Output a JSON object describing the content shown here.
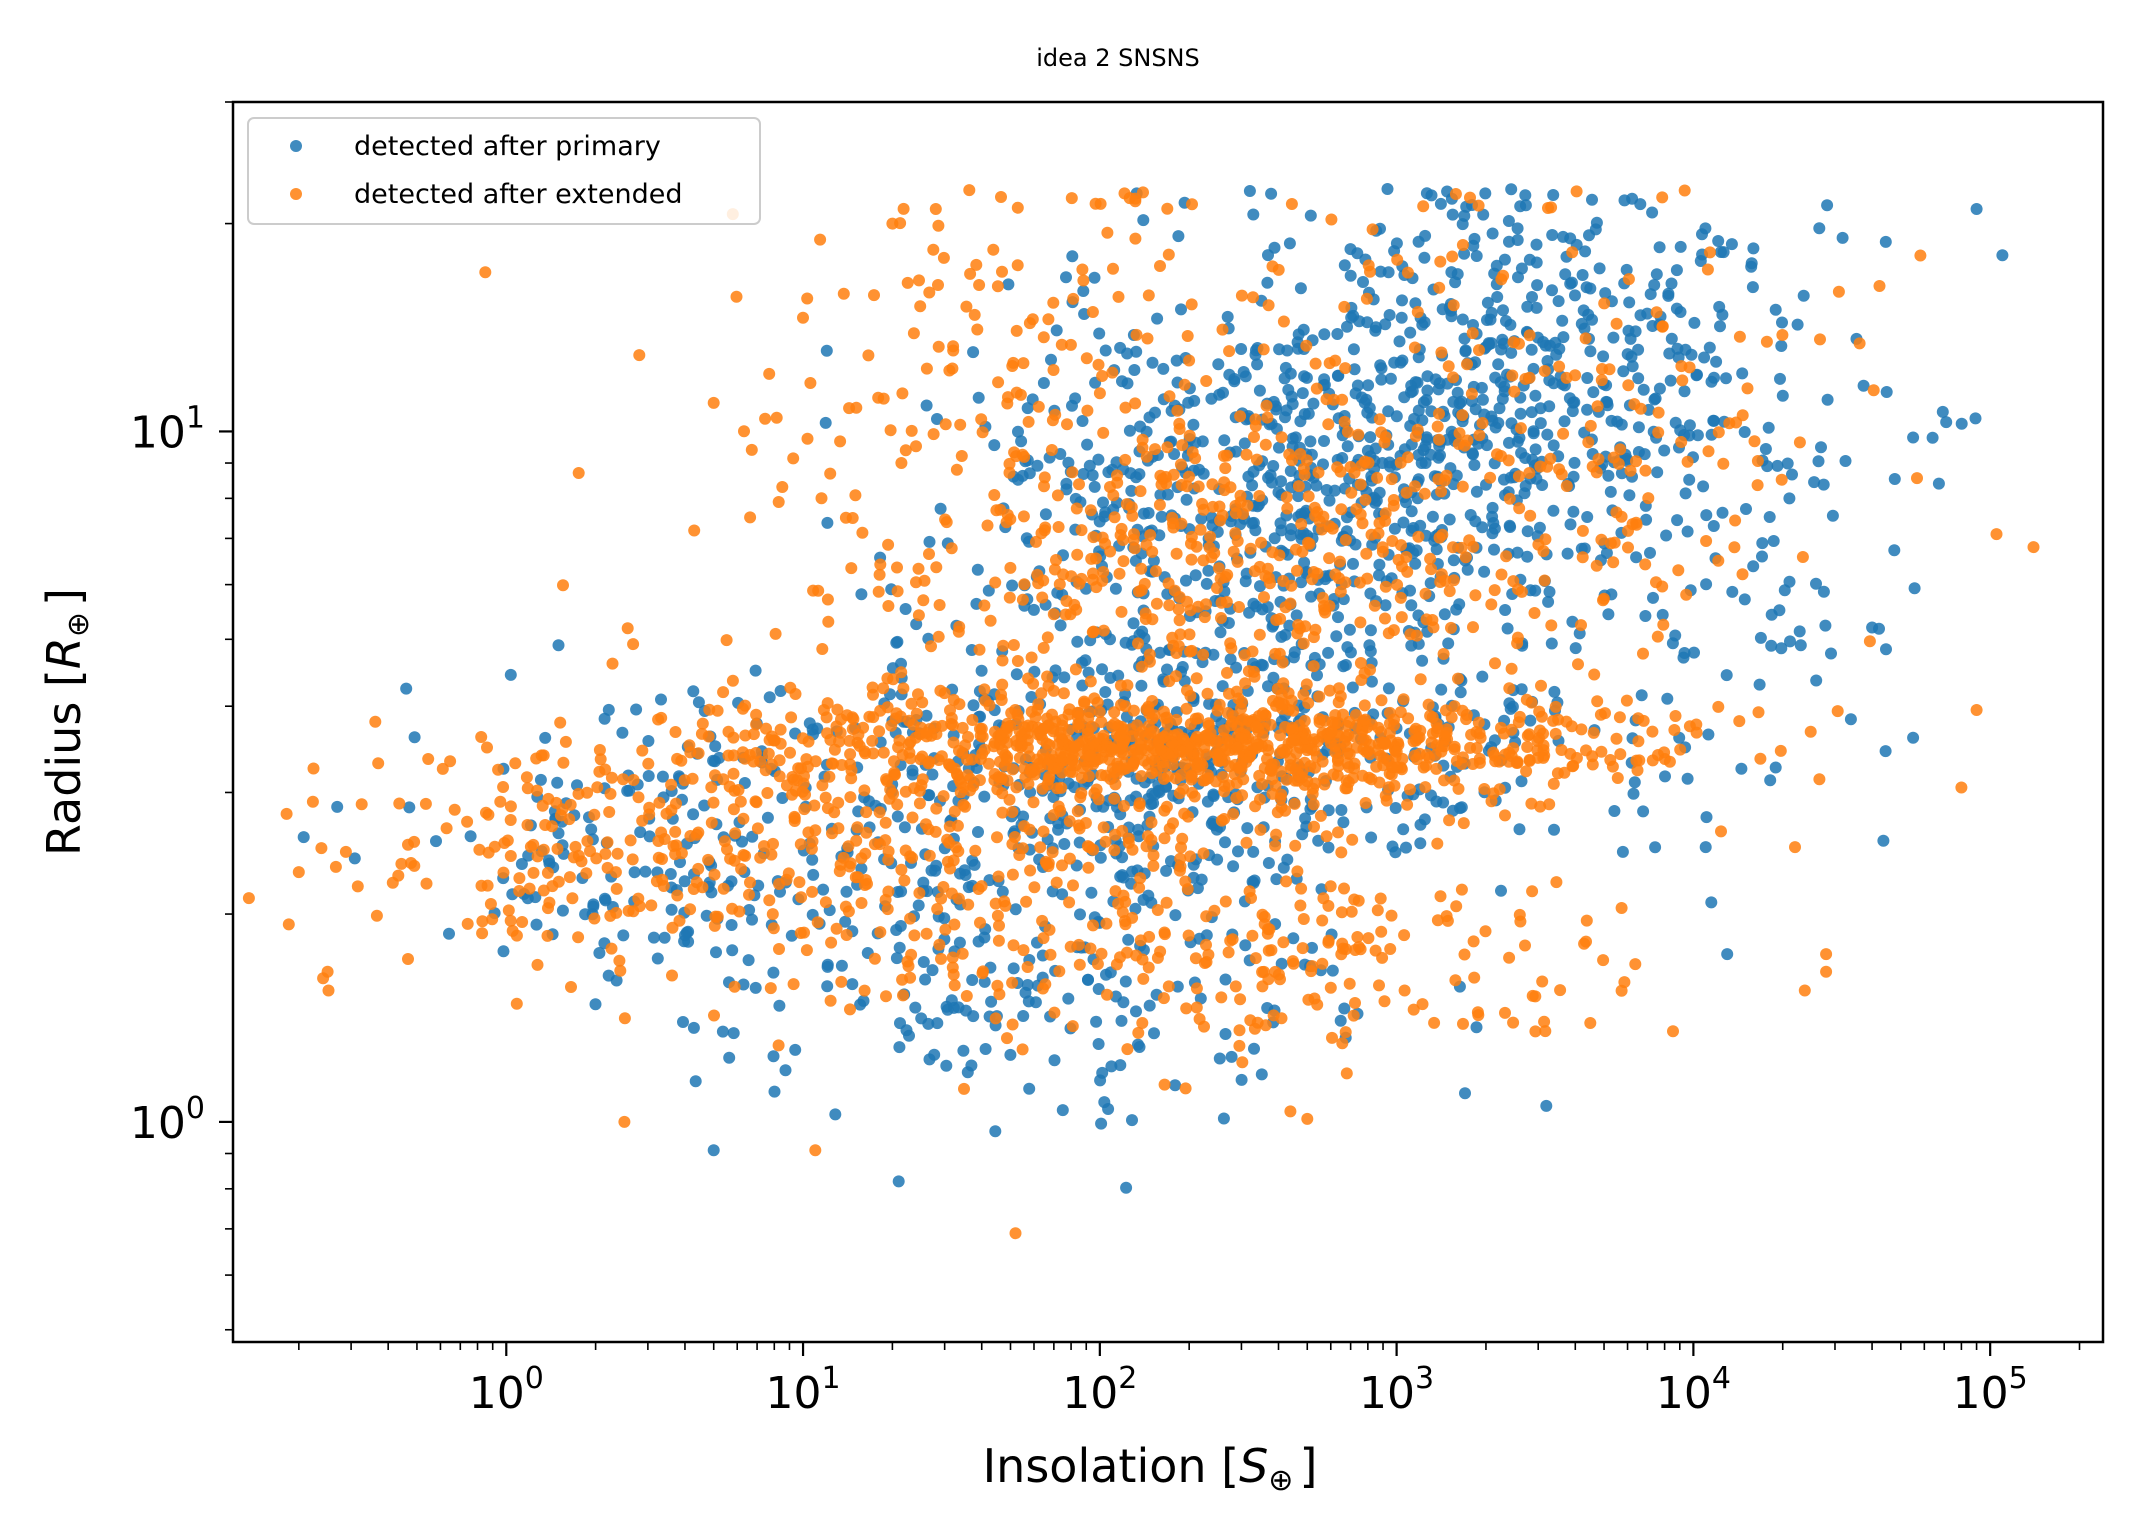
{
  "chart_data": {
    "type": "scatter",
    "title": "idea 2 SNSNS",
    "xlabel": "Insolation [",
    "xlabel_symbol": "S",
    "xlabel_sub": "⊕",
    "xlabel_end": "]",
    "ylabel": "Radius [",
    "ylabel_symbol": "R",
    "ylabel_sub": "⊕",
    "ylabel_end": "]",
    "x_scale": "log",
    "y_scale": "log",
    "xlim": [
      0.12,
      240000
    ],
    "ylim": [
      0.48,
      30
    ],
    "x_ticks": [
      {
        "value": 1,
        "base": "10",
        "exp": "0"
      },
      {
        "value": 10,
        "base": "10",
        "exp": "1"
      },
      {
        "value": 100,
        "base": "10",
        "exp": "2"
      },
      {
        "value": 1000,
        "base": "10",
        "exp": "3"
      },
      {
        "value": 10000,
        "base": "10",
        "exp": "4"
      },
      {
        "value": 100000,
        "base": "10",
        "exp": "5"
      }
    ],
    "y_ticks": [
      {
        "value": 1,
        "base": "10",
        "exp": "0"
      },
      {
        "value": 10,
        "base": "10",
        "exp": "1"
      }
    ],
    "legend_position": "top-left",
    "grid": false,
    "series": [
      {
        "name": "detected after primary",
        "color": "#1f77b4",
        "clusters": [
          {
            "cx": 2000,
            "cy": 11,
            "sx": 0.55,
            "sy": 0.16,
            "n": 700
          },
          {
            "cx": 300,
            "cy": 7,
            "sx": 0.55,
            "sy": 0.17,
            "n": 450
          },
          {
            "cx": 150,
            "cy": 3.3,
            "sx": 0.75,
            "sy": 0.09,
            "n": 500
          },
          {
            "cx": 60,
            "cy": 1.6,
            "sx": 0.6,
            "sy": 0.1,
            "n": 220
          },
          {
            "cx": 3,
            "cy": 2.5,
            "sx": 0.4,
            "sy": 0.08,
            "n": 130
          },
          {
            "cx": 20000,
            "cy": 6,
            "sx": 0.3,
            "sy": 0.2,
            "n": 60
          }
        ],
        "points": [
          {
            "x": 1.5,
            "y": 4.9
          },
          {
            "x": 5,
            "y": 0.91
          },
          {
            "x": 21,
            "y": 0.82
          },
          {
            "x": 75,
            "y": 1.04
          },
          {
            "x": 1700,
            "y": 1.1
          },
          {
            "x": 90000,
            "y": 21
          },
          {
            "x": 110000,
            "y": 18
          },
          {
            "x": 55000,
            "y": 9.8
          },
          {
            "x": 55000,
            "y": 3.6
          },
          {
            "x": 40000,
            "y": 5.2
          },
          {
            "x": 13000,
            "y": 1.75
          },
          {
            "x": 11000,
            "y": 2.5
          }
        ]
      },
      {
        "name": "detected after extended",
        "color": "#ff7f0e",
        "clusters": [
          {
            "cx": 200,
            "cy": 3.5,
            "sx": 0.75,
            "sy": 0.04,
            "n": 900
          },
          {
            "cx": 200,
            "cy": 6.5,
            "sx": 0.6,
            "sy": 0.12,
            "n": 450
          },
          {
            "cx": 30,
            "cy": 2.6,
            "sx": 0.8,
            "sy": 0.1,
            "n": 400
          },
          {
            "cx": 1.5,
            "cy": 2.5,
            "sx": 0.45,
            "sy": 0.09,
            "n": 150
          },
          {
            "cx": 300,
            "cy": 1.7,
            "sx": 0.7,
            "sy": 0.07,
            "n": 200
          },
          {
            "cx": 60,
            "cy": 14,
            "sx": 0.5,
            "sy": 0.12,
            "n": 120
          },
          {
            "cx": 3000,
            "cy": 10,
            "sx": 0.6,
            "sy": 0.17,
            "n": 220
          }
        ],
        "points": [
          {
            "x": 0.85,
            "y": 17
          },
          {
            "x": 0.2,
            "y": 2.3
          },
          {
            "x": 0.25,
            "y": 1.65
          },
          {
            "x": 52,
            "y": 0.69
          },
          {
            "x": 11,
            "y": 0.91
          },
          {
            "x": 2.5,
            "y": 1.0
          },
          {
            "x": 500,
            "y": 1.01
          },
          {
            "x": 140000,
            "y": 6.8
          },
          {
            "x": 105000,
            "y": 7.1
          },
          {
            "x": 80000,
            "y": 3.05
          },
          {
            "x": 90000,
            "y": 3.95
          },
          {
            "x": 28000,
            "y": 1.75
          },
          {
            "x": 28000,
            "y": 1.65
          },
          {
            "x": 22000,
            "y": 2.5
          },
          {
            "x": 20,
            "y": 20
          },
          {
            "x": 28,
            "y": 21
          },
          {
            "x": 5,
            "y": 11
          }
        ]
      }
    ]
  }
}
